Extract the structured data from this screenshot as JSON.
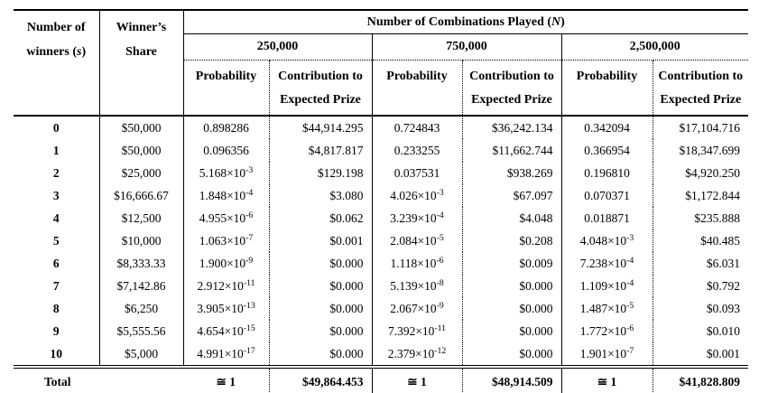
{
  "table": {
    "header": {
      "winners_line1": "Number of",
      "winners_line2_prefix": "winners (",
      "winners_var": "s",
      "winners_suffix": ")",
      "share_line1": "Winner’s",
      "share_line2": "Share",
      "combos_prefix": "Number of Combinations Played (",
      "combos_var": "N",
      "combos_suffix": ")",
      "groups": [
        "250,000",
        "750,000",
        "2,500,000"
      ],
      "prob_label": "Probability",
      "contrib_line1": "Contribution to",
      "contrib_line2": "Expected Prize"
    },
    "rows": [
      {
        "s": "0",
        "share": "$50,000",
        "cells": [
          "0.898286",
          "$44,914.295",
          "0.724843",
          "$36,242.134",
          "0.342094",
          "$17,104.716"
        ]
      },
      {
        "s": "1",
        "share": "$50,000",
        "cells": [
          "0.096356",
          "$4,817.817",
          "0.233255",
          "$11,662.744",
          "0.366954",
          "$18,347.699"
        ]
      },
      {
        "s": "2",
        "share": "$25,000",
        "cells": [
          "5.168×10^-3",
          "$129.198",
          "0.037531",
          "$938.269",
          "0.196810",
          "$4,920.250"
        ]
      },
      {
        "s": "3",
        "share": "$16,666.67",
        "cells": [
          "1.848×10^-4",
          "$3.080",
          "4.026×10^-3",
          "$67.097",
          "0.070371",
          "$1,172.844"
        ]
      },
      {
        "s": "4",
        "share": "$12,500",
        "cells": [
          "4.955×10^-6",
          "$0.062",
          "3.239×10^-4",
          "$4.048",
          "0.018871",
          "$235.888"
        ]
      },
      {
        "s": "5",
        "share": "$10,000",
        "cells": [
          "1.063×10^-7",
          "$0.001",
          "2.084×10^-5",
          "$0.208",
          "4.048×10^-3",
          "$40.485"
        ]
      },
      {
        "s": "6",
        "share": "$8,333.33",
        "cells": [
          "1.900×10^-9",
          "$0.000",
          "1.118×10^-6",
          "$0.009",
          "7.238×10^-4",
          "$6.031"
        ]
      },
      {
        "s": "7",
        "share": "$7,142.86",
        "cells": [
          "2.912×10^-11",
          "$0.000",
          "5.139×10^-8",
          "$0.000",
          "1.109×10^-4",
          "$0.792"
        ]
      },
      {
        "s": "8",
        "share": "$6,250",
        "cells": [
          "3.905×10^-13",
          "$0.000",
          "2.067×10^-9",
          "$0.000",
          "1.487×10^-5",
          "$0.093"
        ]
      },
      {
        "s": "9",
        "share": "$5,555.56",
        "cells": [
          "4.654×10^-15",
          "$0.000",
          "7.392×10^-11",
          "$0.000",
          "1.772×10^-6",
          "$0.010"
        ]
      },
      {
        "s": "10",
        "share": "$5,000",
        "cells": [
          "4.991×10^-17",
          "$0.000",
          "2.379×10^-12",
          "$0.000",
          "1.901×10^-7",
          "$0.001"
        ]
      }
    ],
    "total": {
      "label": "Total",
      "cells": [
        "≅ 1",
        "$49,864.453",
        "≅ 1",
        "$48,914.509",
        "≅ 1",
        "$41,828.809"
      ]
    }
  },
  "colors": {
    "border": "#000000",
    "text": "#000000",
    "background": "#ffffff"
  }
}
